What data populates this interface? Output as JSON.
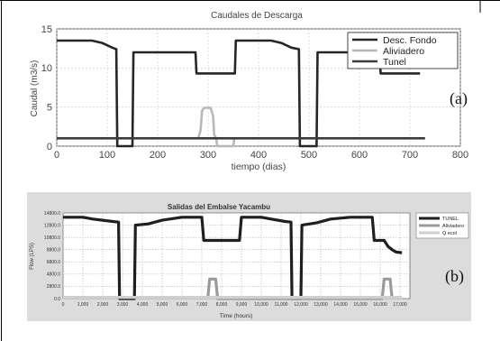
{
  "chart_data": [
    {
      "type": "line",
      "title": "Caudales de Descarga",
      "xlabel": "tiempo (dias)",
      "ylabel": "Caudal (m3/s)",
      "xlim": [
        0,
        800
      ],
      "ylim": [
        0,
        15
      ],
      "xticks": [
        "0",
        "100",
        "200",
        "300",
        "400",
        "500",
        "600",
        "700",
        "800"
      ],
      "yticks": [
        "0",
        "5",
        "10",
        "15"
      ],
      "grid": true,
      "legend_position": "top-right",
      "panel_label": "(a)",
      "series": [
        {
          "name": "Desc. Fondo",
          "color": "#262626",
          "points": [
            [
              0,
              13.5
            ],
            [
              70,
              13.5
            ],
            [
              90,
              13.2
            ],
            [
              110,
              12.6
            ],
            [
              118,
              12.4
            ],
            [
              120,
              0
            ],
            [
              150,
              0
            ],
            [
              152,
              12
            ],
            [
              275,
              12
            ],
            [
              277,
              9.3
            ],
            [
              353,
              9.3
            ],
            [
              355,
              13.5
            ],
            [
              425,
              13.5
            ],
            [
              445,
              13.2
            ],
            [
              465,
              12.6
            ],
            [
              480,
              12.4
            ],
            [
              482,
              0
            ],
            [
              515,
              0
            ],
            [
              517,
              12
            ],
            [
              640,
              12
            ],
            [
              642,
              9.3
            ],
            [
              720,
              9.3
            ]
          ]
        },
        {
          "name": "Aliviadero",
          "color": "#b8b8b8",
          "points": [
            [
              280,
              0.9
            ],
            [
              285,
              2
            ],
            [
              288,
              4.5
            ],
            [
              292,
              4.9
            ],
            [
              305,
              4.9
            ],
            [
              310,
              3.8
            ],
            [
              312,
              1.5
            ],
            [
              316,
              1
            ],
            [
              318,
              0
            ],
            [
              350,
              0
            ],
            [
              352,
              1
            ]
          ]
        },
        {
          "name": "Tunel",
          "color": "#3d3d3d",
          "points": [
            [
              0,
              1
            ],
            [
              730,
              1
            ]
          ]
        }
      ]
    },
    {
      "type": "line",
      "title": "Salidas del Embalse Yacambu",
      "xlabel": "Time (hours)",
      "ylabel": "Flow (LPS)",
      "xlim": [
        0,
        17500
      ],
      "ylim": [
        0,
        14000
      ],
      "xticks": [
        "0",
        "1,000",
        "2,000",
        "3,000",
        "4,000",
        "5,000",
        "6,000",
        "7,000",
        "8,000",
        "9,000",
        "10,000",
        "11,000",
        "12,000",
        "13,000",
        "14,000",
        "15,000",
        "16,000",
        "17,000"
      ],
      "yticks": [
        "0.0",
        "2800.0",
        "4800.0",
        "6800.0",
        "8800.0",
        "10800.0",
        "12800.0",
        "14800.0"
      ],
      "grid": true,
      "legend_position": "right",
      "panel_label": "(b)",
      "series": [
        {
          "name": "TUNEL",
          "color": "#1f1f1f",
          "points": [
            [
              0,
              13300
            ],
            [
              1000,
              13300
            ],
            [
              1500,
              13000
            ],
            [
              2000,
              12800
            ],
            [
              2500,
              12600
            ],
            [
              2800,
              12500
            ],
            [
              2850,
              0
            ],
            [
              3600,
              0
            ],
            [
              3650,
              12000
            ],
            [
              4300,
              12200
            ],
            [
              5000,
              12800
            ],
            [
              6000,
              13300
            ],
            [
              7000,
              13300
            ],
            [
              7100,
              9500
            ],
            [
              8900,
              9500
            ],
            [
              9000,
              13300
            ],
            [
              10000,
              13300
            ],
            [
              10500,
              13000
            ],
            [
              11200,
              12600
            ],
            [
              11500,
              12500
            ],
            [
              11550,
              0
            ],
            [
              12000,
              0
            ],
            [
              12050,
              12000
            ],
            [
              12800,
              12400
            ],
            [
              13500,
              13000
            ],
            [
              14500,
              13300
            ],
            [
              15600,
              13300
            ],
            [
              15700,
              9500
            ],
            [
              16200,
              9500
            ],
            [
              16400,
              8500
            ],
            [
              16600,
              8000
            ],
            [
              16800,
              7600
            ],
            [
              17100,
              7500
            ]
          ]
        },
        {
          "name": "Aliviadero",
          "color": "#9a9a9a",
          "points": [
            [
              7300,
              0
            ],
            [
              7400,
              3200
            ],
            [
              7700,
              3200
            ],
            [
              7800,
              0
            ],
            [
              16100,
              0
            ],
            [
              16200,
              3200
            ],
            [
              16500,
              3200
            ],
            [
              16600,
              0
            ]
          ]
        },
        {
          "name": "Q ecol",
          "color": "#cfcfcf",
          "points": [
            [
              0,
              200
            ],
            [
              17100,
              200
            ]
          ]
        }
      ]
    }
  ]
}
